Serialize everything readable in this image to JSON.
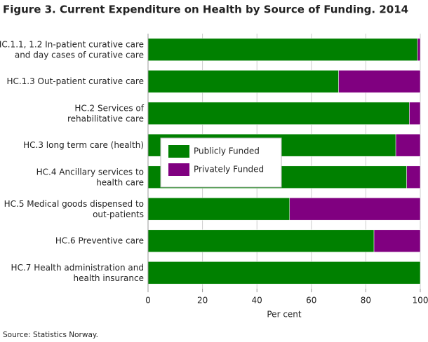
{
  "chart_data": {
    "type": "stacked-barh",
    "title": "Figure 3. Current Expenditure on Health by Source of Funding. 2014",
    "categories": [
      "HC.1.1, 1.2 In-patient curative care\nand day cases of curative care",
      "HC.1.3 Out-patient curative care",
      "HC.2 Services of\nrehabilitative care",
      "HC.3 long term care (health)",
      "HC.4 Ancillary services to\nhealth care",
      "HC.5 Medical goods dispensed to\nout-patients",
      "HC.6 Preventive care",
      "HC.7 Health administration and\nhealth insurance"
    ],
    "series": [
      {
        "name": "Publicly Funded",
        "color": "#008000",
        "values": [
          99,
          70,
          96,
          91,
          95,
          52,
          83,
          100
        ]
      },
      {
        "name": "Privately Funded",
        "color": "#800080",
        "values": [
          1,
          30,
          4,
          9,
          5,
          48,
          17,
          0
        ]
      }
    ],
    "xlim": [
      0,
      100
    ],
    "xticks": [
      0,
      20,
      40,
      60,
      80,
      100
    ],
    "grid": true,
    "xlabel": "Per cent",
    "source": "Source: Statistics Norway."
  }
}
